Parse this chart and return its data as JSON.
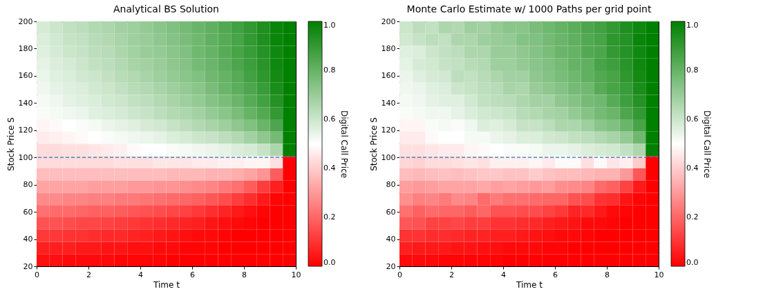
{
  "chart_data": [
    {
      "type": "heatmap",
      "title": "Analytical BS Solution",
      "xlabel": "Time t",
      "ylabel": "Stock Price S",
      "clabel": "Digital Call Price",
      "xlim": [
        0,
        10
      ],
      "ylim": [
        20,
        200
      ],
      "xticks": [
        0,
        2,
        4,
        6,
        8,
        10
      ],
      "yticks": [
        20,
        40,
        60,
        80,
        100,
        120,
        140,
        160,
        180,
        200
      ],
      "clim": [
        0,
        1
      ],
      "cticks": [
        {
          "value": 0,
          "label": "0.0"
        },
        {
          "value": 0.2,
          "label": "0.2"
        },
        {
          "value": 0.4,
          "label": "0.4"
        },
        {
          "value": 0.6,
          "label": "0.6"
        },
        {
          "value": 0.8,
          "label": "0.8"
        },
        {
          "value": 1,
          "label": "1.0"
        }
      ],
      "colors": [
        "#ff0000",
        "#ffffff",
        "#008000"
      ],
      "ref_lines": [
        {
          "axis": "y",
          "value": 100,
          "color": "#1f77b4",
          "line_style": "dashed"
        }
      ],
      "cells": [
        [
          0.58,
          0.6,
          0.62,
          0.63,
          0.65,
          0.66,
          0.68,
          0.69,
          0.71,
          0.73,
          0.75,
          0.77,
          0.79,
          0.81,
          0.84,
          0.87,
          0.9,
          0.94,
          0.98,
          1
        ],
        [
          0.57,
          0.59,
          0.61,
          0.62,
          0.64,
          0.65,
          0.67,
          0.69,
          0.7,
          0.72,
          0.74,
          0.76,
          0.78,
          0.81,
          0.83,
          0.86,
          0.9,
          0.94,
          0.98,
          1
        ],
        [
          0.56,
          0.58,
          0.6,
          0.61,
          0.63,
          0.64,
          0.66,
          0.68,
          0.7,
          0.71,
          0.73,
          0.75,
          0.78,
          0.8,
          0.83,
          0.86,
          0.89,
          0.93,
          0.97,
          1
        ],
        [
          0.55,
          0.57,
          0.58,
          0.6,
          0.62,
          0.63,
          0.65,
          0.67,
          0.68,
          0.7,
          0.72,
          0.74,
          0.77,
          0.79,
          0.82,
          0.85,
          0.88,
          0.92,
          0.97,
          1
        ],
        [
          0.54,
          0.56,
          0.57,
          0.59,
          0.6,
          0.62,
          0.64,
          0.65,
          0.67,
          0.69,
          0.71,
          0.73,
          0.75,
          0.78,
          0.8,
          0.83,
          0.87,
          0.91,
          0.96,
          1
        ],
        [
          0.53,
          0.55,
          0.56,
          0.57,
          0.59,
          0.6,
          0.62,
          0.64,
          0.65,
          0.67,
          0.69,
          0.71,
          0.73,
          0.76,
          0.79,
          0.82,
          0.85,
          0.89,
          0.95,
          1
        ],
        [
          0.52,
          0.53,
          0.55,
          0.56,
          0.57,
          0.59,
          0.6,
          0.62,
          0.63,
          0.65,
          0.67,
          0.69,
          0.71,
          0.74,
          0.76,
          0.79,
          0.83,
          0.87,
          0.93,
          1
        ],
        [
          0.51,
          0.52,
          0.53,
          0.54,
          0.56,
          0.57,
          0.58,
          0.6,
          0.61,
          0.63,
          0.65,
          0.66,
          0.68,
          0.71,
          0.73,
          0.76,
          0.8,
          0.84,
          0.9,
          1
        ],
        [
          0.48,
          0.49,
          0.5,
          0.51,
          0.52,
          0.54,
          0.55,
          0.56,
          0.58,
          0.59,
          0.61,
          0.63,
          0.65,
          0.67,
          0.69,
          0.72,
          0.75,
          0.79,
          0.85,
          1
        ],
        [
          0.46,
          0.47,
          0.48,
          0.49,
          0.5,
          0.51,
          0.52,
          0.53,
          0.54,
          0.55,
          0.57,
          0.58,
          0.6,
          0.61,
          0.63,
          0.65,
          0.68,
          0.72,
          0.77,
          1
        ],
        [
          0.43,
          0.43,
          0.44,
          0.44,
          0.45,
          0.46,
          0.47,
          0.49,
          0.5,
          0.5,
          0.51,
          0.52,
          0.53,
          0.54,
          0.55,
          0.57,
          0.58,
          0.61,
          0.66,
          1
        ],
        [
          0.43,
          0.43,
          0.43,
          0.43,
          0.43,
          0.43,
          0.44,
          0.44,
          0.44,
          0.45,
          0.45,
          0.45,
          0.46,
          0.46,
          0.47,
          0.47,
          0.48,
          0.48,
          0.44,
          0
        ],
        [
          0.37,
          0.37,
          0.37,
          0.37,
          0.37,
          0.37,
          0.37,
          0.37,
          0.37,
          0.37,
          0.36,
          0.36,
          0.36,
          0.35,
          0.35,
          0.34,
          0.32,
          0.29,
          0.18,
          0
        ],
        [
          0.32,
          0.32,
          0.32,
          0.32,
          0.31,
          0.31,
          0.31,
          0.3,
          0.3,
          0.29,
          0.29,
          0.28,
          0.27,
          0.26,
          0.24,
          0.22,
          0.18,
          0.12,
          0.06,
          0
        ],
        [
          0.27,
          0.27,
          0.26,
          0.26,
          0.25,
          0.25,
          0.24,
          0.24,
          0.23,
          0.22,
          0.21,
          0.2,
          0.19,
          0.17,
          0.15,
          0.12,
          0.09,
          0.05,
          0.01,
          0
        ],
        [
          0.22,
          0.21,
          0.21,
          0.2,
          0.19,
          0.19,
          0.18,
          0.17,
          0.16,
          0.15,
          0.14,
          0.13,
          0.11,
          0.09,
          0.07,
          0.05,
          0.03,
          0.01,
          0,
          0
        ],
        [
          0.16,
          0.16,
          0.15,
          0.14,
          0.14,
          0.13,
          0.12,
          0.11,
          0.1,
          0.09,
          0.08,
          0.07,
          0.06,
          0.04,
          0.03,
          0.02,
          0.01,
          0,
          0,
          0
        ],
        [
          0.11,
          0.11,
          0.1,
          0.1,
          0.09,
          0.08,
          0.08,
          0.07,
          0.06,
          0.05,
          0.04,
          0.03,
          0.02,
          0.02,
          0.01,
          0,
          0,
          0,
          0,
          0
        ],
        [
          0.06,
          0.06,
          0.06,
          0.05,
          0.05,
          0.04,
          0.04,
          0.03,
          0.03,
          0.02,
          0.02,
          0.01,
          0.01,
          0.01,
          0,
          0,
          0,
          0,
          0,
          0
        ],
        [
          0.03,
          0.03,
          0.02,
          0.02,
          0.02,
          0.02,
          0.01,
          0.01,
          0.01,
          0.01,
          0,
          0,
          0,
          0,
          0,
          0,
          0,
          0,
          0,
          0
        ]
      ]
    },
    {
      "type": "heatmap",
      "title": "Monte Carlo Estimate w/ 1000 Paths per grid point",
      "xlabel": "Time t",
      "ylabel": "Stock Price S",
      "clabel": "Digital Call Price",
      "xlim": [
        0,
        10
      ],
      "ylim": [
        20,
        200
      ],
      "xticks": [
        0,
        2,
        4,
        6,
        8,
        10
      ],
      "yticks": [
        20,
        40,
        60,
        80,
        100,
        120,
        140,
        160,
        180,
        200
      ],
      "clim": [
        0,
        1
      ],
      "cticks": [
        {
          "value": 0,
          "label": "0.0"
        },
        {
          "value": 0.2,
          "label": "0.2"
        },
        {
          "value": 0.4,
          "label": "0.4"
        },
        {
          "value": 0.6,
          "label": "0.6"
        },
        {
          "value": 0.8,
          "label": "0.8"
        },
        {
          "value": 1,
          "label": "1.0"
        }
      ],
      "colors": [
        "#ff0000",
        "#ffffff",
        "#008000"
      ],
      "ref_lines": [
        {
          "axis": "y",
          "value": 100,
          "color": "#1f77b4",
          "line_style": "dashed"
        }
      ],
      "cells": [
        [
          0.6,
          0.63,
          0.62,
          0.66,
          0.65,
          0.69,
          0.68,
          0.71,
          0.73,
          0.73,
          0.76,
          0.78,
          0.8,
          0.82,
          0.85,
          0.87,
          0.9,
          0.94,
          0.97,
          1
        ],
        [
          0.59,
          0.61,
          0.63,
          0.62,
          0.66,
          0.66,
          0.69,
          0.7,
          0.71,
          0.74,
          0.75,
          0.77,
          0.79,
          0.81,
          0.84,
          0.86,
          0.91,
          0.93,
          0.98,
          1
        ],
        [
          0.56,
          0.57,
          0.6,
          0.62,
          0.63,
          0.66,
          0.66,
          0.7,
          0.7,
          0.72,
          0.74,
          0.76,
          0.79,
          0.8,
          0.84,
          0.85,
          0.9,
          0.93,
          0.97,
          1
        ],
        [
          0.55,
          0.58,
          0.59,
          0.61,
          0.62,
          0.64,
          0.65,
          0.69,
          0.69,
          0.71,
          0.73,
          0.75,
          0.77,
          0.8,
          0.81,
          0.86,
          0.88,
          0.92,
          0.97,
          1
        ],
        [
          0.54,
          0.56,
          0.58,
          0.59,
          0.63,
          0.62,
          0.64,
          0.66,
          0.68,
          0.68,
          0.72,
          0.74,
          0.76,
          0.78,
          0.81,
          0.84,
          0.86,
          0.91,
          0.96,
          1
        ],
        [
          0.53,
          0.54,
          0.56,
          0.57,
          0.6,
          0.61,
          0.63,
          0.64,
          0.67,
          0.66,
          0.7,
          0.72,
          0.74,
          0.77,
          0.78,
          0.83,
          0.86,
          0.89,
          0.95,
          1
        ],
        [
          0.52,
          0.53,
          0.55,
          0.56,
          0.56,
          0.59,
          0.62,
          0.63,
          0.64,
          0.66,
          0.68,
          0.68,
          0.72,
          0.74,
          0.77,
          0.78,
          0.83,
          0.88,
          0.93,
          1
        ],
        [
          0.51,
          0.52,
          0.53,
          0.53,
          0.55,
          0.57,
          0.59,
          0.6,
          0.61,
          0.64,
          0.65,
          0.67,
          0.68,
          0.71,
          0.74,
          0.77,
          0.79,
          0.85,
          0.9,
          1
        ],
        [
          0.48,
          0.48,
          0.51,
          0.52,
          0.51,
          0.53,
          0.57,
          0.56,
          0.58,
          0.61,
          0.61,
          0.63,
          0.66,
          0.66,
          0.69,
          0.73,
          0.75,
          0.79,
          0.86,
          1
        ],
        [
          0.46,
          0.46,
          0.49,
          0.5,
          0.5,
          0.52,
          0.52,
          0.54,
          0.55,
          0.57,
          0.57,
          0.59,
          0.6,
          0.62,
          0.63,
          0.65,
          0.67,
          0.71,
          0.78,
          1
        ],
        [
          0.44,
          0.44,
          0.45,
          0.46,
          0.46,
          0.48,
          0.49,
          0.5,
          0.51,
          0.51,
          0.52,
          0.54,
          0.54,
          0.55,
          0.57,
          0.58,
          0.59,
          0.62,
          0.66,
          1
        ],
        [
          0.42,
          0.41,
          0.43,
          0.43,
          0.44,
          0.45,
          0.44,
          0.47,
          0.47,
          0.47,
          0.48,
          0.46,
          0.49,
          0.49,
          0.44,
          0.49,
          0.45,
          0.47,
          0.4,
          0
        ],
        [
          0.37,
          0.36,
          0.37,
          0.38,
          0.37,
          0.38,
          0.39,
          0.39,
          0.38,
          0.38,
          0.4,
          0.38,
          0.37,
          0.37,
          0.36,
          0.35,
          0.35,
          0.3,
          0.17,
          0
        ],
        [
          0.31,
          0.3,
          0.31,
          0.32,
          0.32,
          0.32,
          0.33,
          0.31,
          0.32,
          0.31,
          0.3,
          0.31,
          0.28,
          0.27,
          0.26,
          0.21,
          0.19,
          0.13,
          0.05,
          0
        ],
        [
          0.28,
          0.25,
          0.26,
          0.24,
          0.27,
          0.26,
          0.21,
          0.24,
          0.22,
          0.22,
          0.21,
          0.2,
          0.2,
          0.16,
          0.15,
          0.1,
          0.09,
          0.04,
          0.01,
          0
        ],
        [
          0.22,
          0.19,
          0.21,
          0.2,
          0.2,
          0.18,
          0.2,
          0.16,
          0.16,
          0.15,
          0.15,
          0.13,
          0.11,
          0.07,
          0.08,
          0.05,
          0.02,
          0.01,
          0,
          0
        ],
        [
          0.17,
          0.16,
          0.13,
          0.13,
          0.14,
          0.12,
          0.12,
          0.1,
          0.1,
          0.09,
          0.08,
          0.06,
          0.05,
          0.04,
          0.02,
          0.02,
          0.01,
          0,
          0,
          0
        ],
        [
          0.1,
          0.1,
          0.09,
          0.09,
          0.08,
          0.07,
          0.07,
          0.06,
          0.06,
          0.05,
          0.04,
          0.03,
          0.02,
          0.02,
          0.01,
          0,
          0,
          0,
          0,
          0
        ],
        [
          0.06,
          0.05,
          0.05,
          0.05,
          0.04,
          0.04,
          0.03,
          0.03,
          0.02,
          0.02,
          0.02,
          0.01,
          0.01,
          0,
          0,
          0,
          0,
          0,
          0,
          0
        ],
        [
          0.02,
          0.02,
          0.02,
          0.01,
          0.01,
          0.01,
          0.01,
          0.01,
          0,
          0,
          0,
          0,
          0,
          0,
          0,
          0,
          0,
          0,
          0,
          0
        ]
      ]
    }
  ]
}
